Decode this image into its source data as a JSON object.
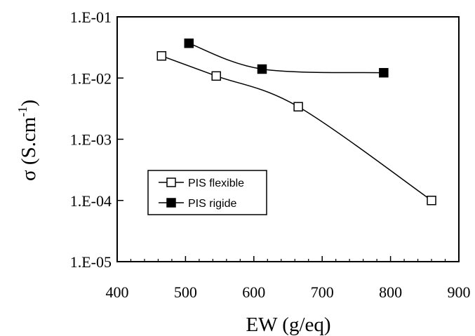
{
  "chart_data": {
    "type": "line",
    "x_scale": "linear",
    "y_scale": "log",
    "xlabel": "EW (g/eq)",
    "ylabel_base": "σ (S.cm",
    "ylabel_sup": "-1",
    "ylabel_end": ")",
    "xlim": [
      400,
      900
    ],
    "ylim": [
      1e-05,
      0.1
    ],
    "x_ticks": [
      400,
      500,
      600,
      700,
      800,
      900
    ],
    "x_tick_labels": [
      "400",
      "500",
      "600",
      "700",
      "800",
      "900"
    ],
    "y_ticks": [
      0.1,
      0.01,
      0.001,
      0.0001,
      1e-05
    ],
    "y_tick_labels": [
      "1.E-01",
      "1.E-02",
      "1.E-03",
      "1.E-04",
      "1.E-05"
    ],
    "grid": false,
    "legend_position": "lower-left",
    "series": [
      {
        "name": "PIS flexible",
        "marker": "open-square",
        "x": [
          465,
          545,
          665,
          860
        ],
        "y": [
          0.023,
          0.0108,
          0.0034,
          0.0001
        ]
      },
      {
        "name": "PIS rigide",
        "marker": "filled-square",
        "x": [
          505,
          612,
          790
        ],
        "y": [
          0.037,
          0.014,
          0.0122
        ]
      }
    ]
  }
}
